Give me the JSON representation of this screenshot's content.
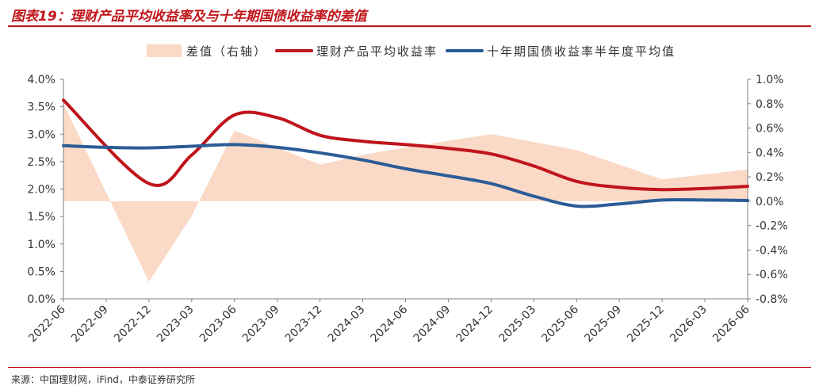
{
  "figure": {
    "title": "图表19：理财产品平均收益率及与十年期国债收益率的差值",
    "source": "来源：中国理财网，iFind，中泰证券研究所"
  },
  "chart_data": {
    "type": "line",
    "title": "",
    "legend_position": "top",
    "grid": false,
    "categories": [
      "2022-06",
      "2022-09",
      "2022-12",
      "2023-03",
      "2023-06",
      "2023-09",
      "2023-12",
      "2024-03",
      "2024-06",
      "2024-09",
      "2024-12",
      "2025-03",
      "2025-06",
      "2025-09",
      "2025-12",
      "2026-03",
      "2026-06"
    ],
    "left_axis": {
      "ticks": [
        "0.0%",
        "0.5%",
        "1.0%",
        "1.5%",
        "2.0%",
        "2.5%",
        "3.0%",
        "3.5%",
        "4.0%"
      ],
      "ylim": [
        0,
        4
      ]
    },
    "right_axis": {
      "ticks": [
        "-0.8%",
        "-0.6%",
        "-0.4%",
        "-0.2%",
        "0.0%",
        "0.2%",
        "0.4%",
        "0.6%",
        "0.8%",
        "1.0%"
      ],
      "ylim": [
        -0.8,
        1.0
      ]
    },
    "series": [
      {
        "name": "差值（右轴）",
        "type": "area",
        "axis": "right",
        "color": "#fad9c7",
        "x": [
          "2022-06",
          "2022-12",
          "2023-03",
          "2023-06",
          "2023-12",
          "2024-03",
          "2024-06",
          "2024-12",
          "2025-06",
          "2025-12",
          "2026-06"
        ],
        "values": [
          0.8,
          -0.66,
          -0.12,
          0.58,
          0.3,
          0.38,
          0.44,
          0.55,
          0.42,
          0.18,
          0.26
        ]
      },
      {
        "name": "理财产品平均收益率",
        "type": "line",
        "axis": "left",
        "color": "#c0141b",
        "x": [
          "2022-06",
          "2022-12",
          "2023-03",
          "2023-06",
          "2023-09",
          "2023-12",
          "2024-03",
          "2024-06",
          "2024-09",
          "2024-12",
          "2025-03",
          "2025-06",
          "2025-09",
          "2025-12",
          "2026-03",
          "2026-06"
        ],
        "values": [
          3.62,
          2.1,
          2.62,
          3.35,
          3.3,
          2.98,
          2.87,
          2.81,
          2.74,
          2.64,
          2.42,
          2.14,
          2.03,
          1.99,
          2.01,
          2.05
        ]
      },
      {
        "name": "十年期国债收益率半年度平均值",
        "type": "line",
        "axis": "left",
        "color": "#2b5c97",
        "x": [
          "2022-06",
          "2022-09",
          "2022-12",
          "2023-03",
          "2023-06",
          "2023-09",
          "2023-12",
          "2024-03",
          "2024-06",
          "2024-09",
          "2024-12",
          "2025-03",
          "2025-06",
          "2025-09",
          "2025-12",
          "2026-03",
          "2026-06"
        ],
        "values": [
          2.79,
          2.76,
          2.75,
          2.78,
          2.81,
          2.76,
          2.66,
          2.53,
          2.37,
          2.24,
          2.1,
          1.87,
          1.69,
          1.73,
          1.8,
          1.8,
          1.79
        ]
      }
    ]
  }
}
